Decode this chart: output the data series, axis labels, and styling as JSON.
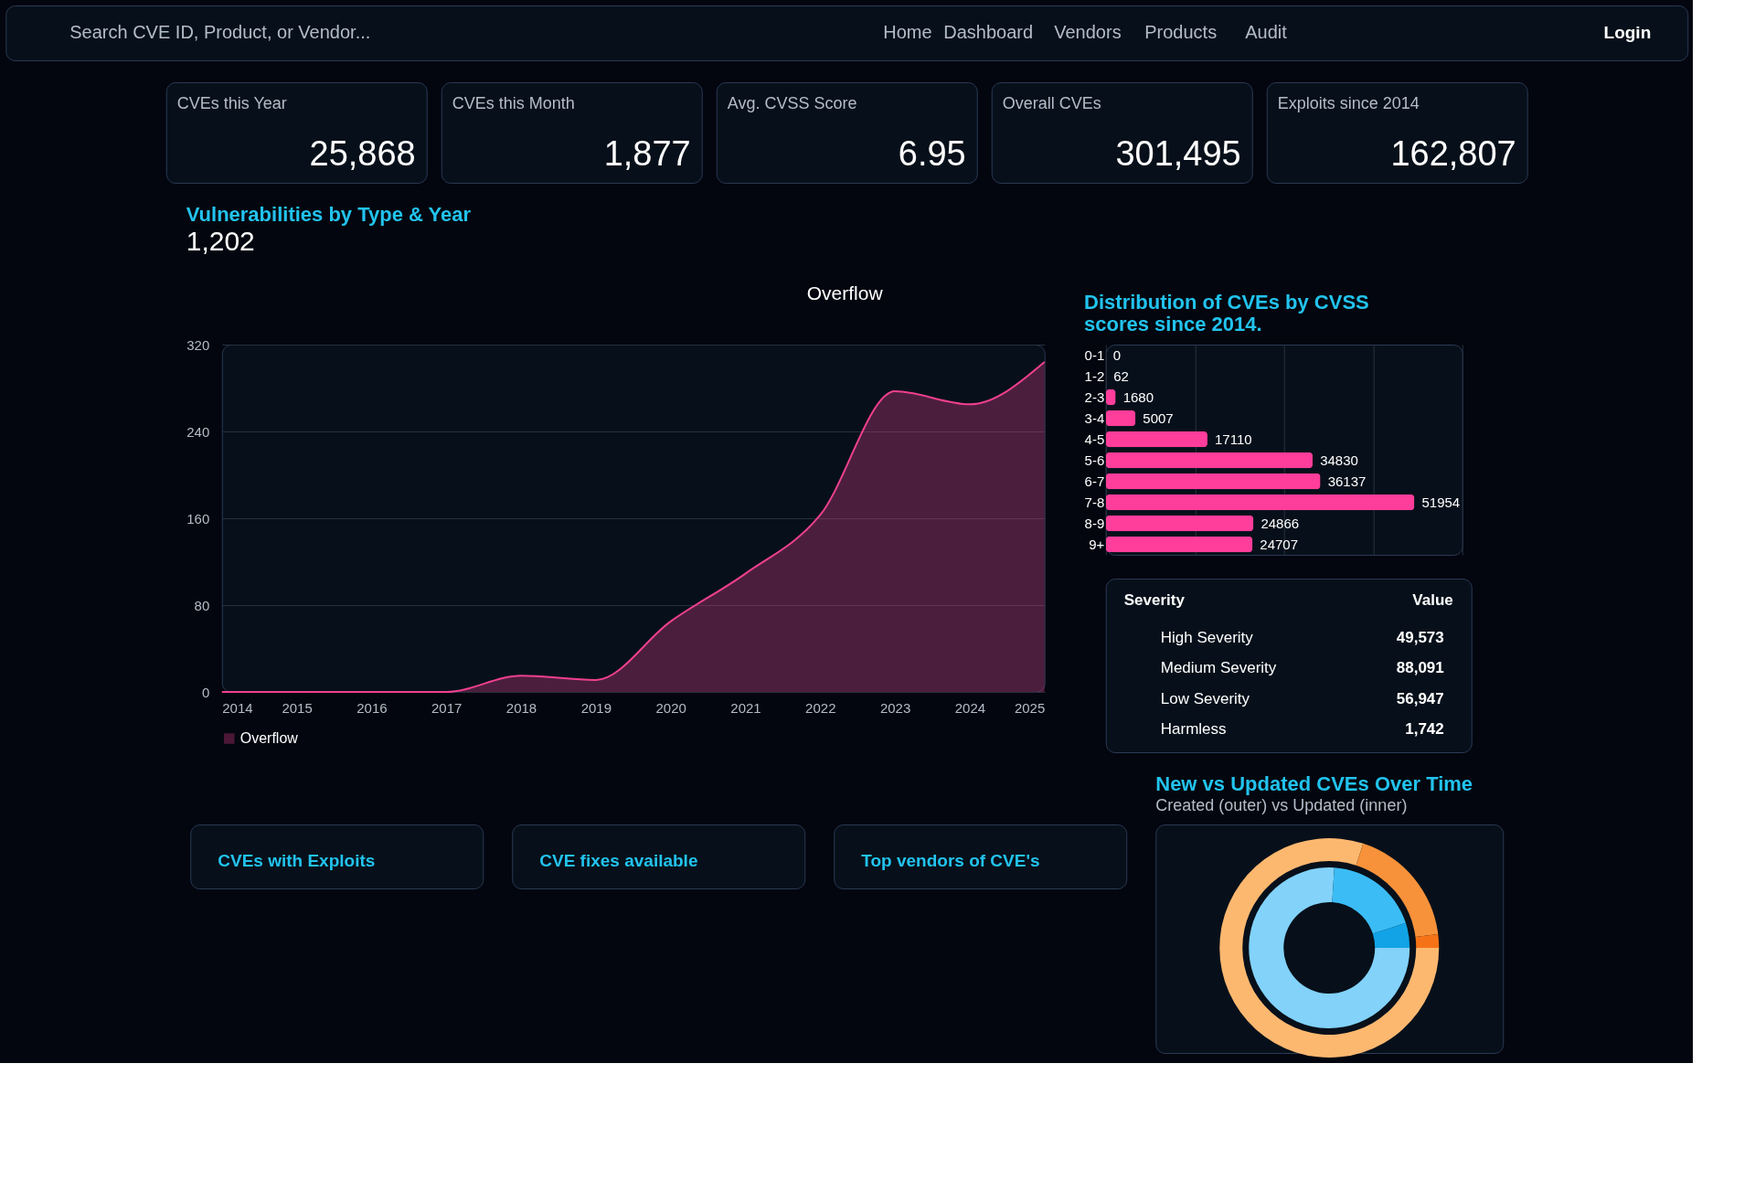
{
  "chart_data": [
    {
      "type": "other",
      "annotations": [
        "Search CVE ID, Product, or Vendor...",
        "Home",
        "Dashboard",
        "Vendors",
        "Products",
        "Audit",
        "Login"
      ]
    },
    {
      "type": "other",
      "title": "CVEs this Year",
      "annotations": [
        "25,868"
      ]
    },
    {
      "type": "other",
      "title": "CVEs this Month",
      "annotations": [
        "1,877"
      ]
    },
    {
      "type": "other",
      "title": "Avg. CVSS Score",
      "annotations": [
        "6.95"
      ]
    },
    {
      "type": "other",
      "title": "Overall CVEs",
      "annotations": [
        "301,495"
      ]
    },
    {
      "type": "other",
      "title": "Exploits since 2014",
      "annotations": [
        "162,807"
      ]
    },
    {
      "type": "area",
      "title": "Vulnerabilities by Type & Year",
      "subtitle": "1,202",
      "annotations": [
        "Overflow"
      ],
      "x": [
        2014,
        2015,
        2016,
        2017,
        2018,
        2019,
        2020,
        2021,
        2022,
        2023,
        2024,
        2025
      ],
      "series": [
        {
          "name": "Overflow",
          "color": "#f0408f",
          "values": [
            0,
            0,
            0,
            0,
            15,
            11,
            65,
            109,
            163,
            277,
            265,
            304
          ]
        }
      ],
      "xlim": [
        2014,
        2025
      ],
      "xticks": [
        2014,
        2015,
        2016,
        2017,
        2018,
        2019,
        2020,
        2021,
        2022,
        2023,
        2024,
        2025
      ],
      "ylim": [
        0,
        320
      ],
      "yticks": [
        0,
        80,
        160,
        240,
        320
      ],
      "grid": "y",
      "legend": "bottom"
    },
    {
      "type": "bar",
      "orientation": "horizontal",
      "title": "Distribution of CVEs by CVSS scores since 2014.",
      "categories": [
        "0-1",
        "1-2",
        "2-3",
        "3-4",
        "4-5",
        "5-6",
        "6-7",
        "7-8",
        "8-9",
        "9+"
      ],
      "values": [
        0,
        62,
        1680,
        5007,
        17110,
        34830,
        36137,
        51954,
        24866,
        24707
      ],
      "color": "#ff3d9a",
      "xlim": [
        0,
        60000
      ],
      "xticks": [
        {
          "value": 0,
          "label": null
        },
        {
          "value": 15000,
          "label": null
        },
        {
          "value": 30000,
          "label": null
        },
        {
          "value": 45000,
          "label": null
        },
        {
          "value": 60000,
          "label": null
        }
      ],
      "grid": "x",
      "tick_labels": "y",
      "data_labels": true
    },
    {
      "type": "other",
      "annotations": [
        "Severity",
        "Value"
      ],
      "categories": [
        "High Severity",
        "Medium Severity",
        "Low Severity",
        "Harmless"
      ],
      "values": [
        49573,
        88091,
        56947,
        1742
      ],
      "value_labels": [
        "49,573",
        "88,091",
        "56,947",
        "1,742"
      ]
    },
    {
      "type": "donut",
      "title": "New vs Updated CVEs Over Time",
      "subtitle": "Created (outer) vs Updated (inner)",
      "series": [
        {
          "values": [
            80,
            18,
            2
          ],
          "colors": [
            "#fdb870",
            "#f7923a",
            "#f57316"
          ]
        },
        {
          "values": [
            76,
            19,
            5
          ],
          "colors": [
            "#82d2fa",
            "#3bbcf5",
            "#12a3e6"
          ]
        }
      ]
    },
    {
      "type": "other",
      "title": "CVEs with Exploits"
    },
    {
      "type": "other",
      "title": "CVE fixes available"
    },
    {
      "type": "other",
      "title": "Top vendors of CVE's"
    }
  ]
}
